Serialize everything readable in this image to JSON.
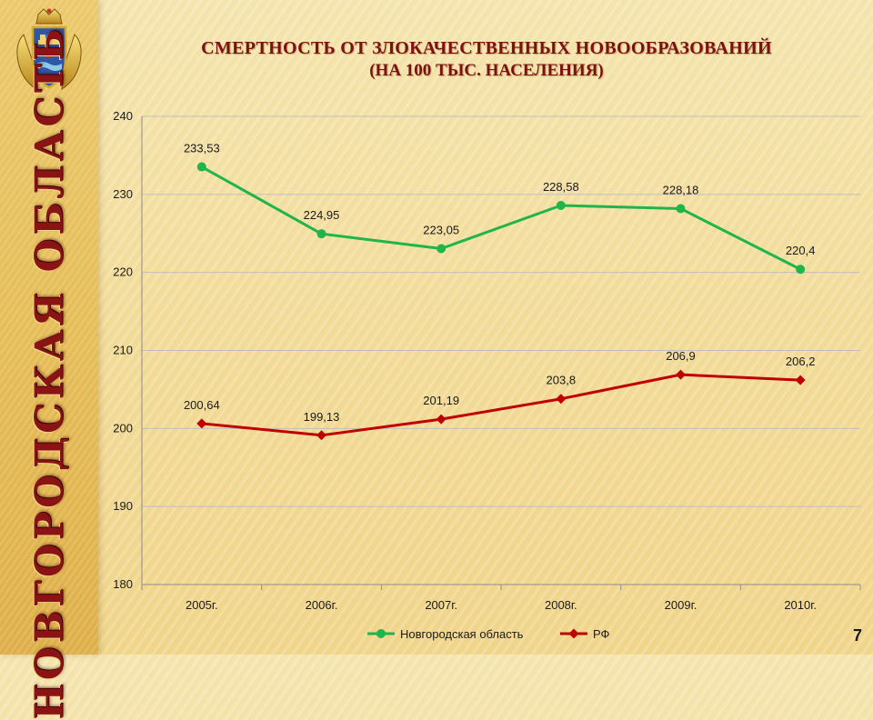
{
  "slide": {
    "region_name": "НОВГОРОДСКАЯ ОБЛАСТЬ",
    "title_line1": "СМЕРТНОСТЬ ОТ ЗЛОКАЧЕСТВЕННЫХ НОВООБРАЗОВАНИЙ",
    "title_line2": "(НА 100 ТЫС. НАСЕЛЕНИЯ)",
    "page_number": "7"
  },
  "colors": {
    "novgorod": "#1fb54a",
    "rf": "#c00000",
    "title": "#7a1212",
    "grid": "#bfbfbf"
  },
  "icons": {
    "emblem": "coat-of-arms-icon"
  },
  "chart_data": {
    "type": "line",
    "categories": [
      "2005г.",
      "2006г.",
      "2007г.",
      "2008г.",
      "2009г.",
      "2010г."
    ],
    "series": [
      {
        "name": "Новгородская область",
        "values": [
          233.53,
          224.95,
          223.05,
          228.58,
          228.18,
          220.4
        ],
        "labels": [
          "233,53",
          "224,95",
          "223,05",
          "228,58",
          "228,18",
          "220,4"
        ],
        "marker": "circle"
      },
      {
        "name": "РФ",
        "values": [
          200.64,
          199.13,
          201.19,
          203.8,
          206.9,
          206.2
        ],
        "labels": [
          "200,64",
          "199,13",
          "201,19",
          "203,8",
          "206,9",
          "206,2"
        ],
        "marker": "diamond"
      }
    ],
    "ylim": [
      180,
      240
    ],
    "yticks": [
      "180",
      "190",
      "200",
      "210",
      "220",
      "230",
      "240"
    ],
    "grid": true,
    "legend": "bottom"
  }
}
